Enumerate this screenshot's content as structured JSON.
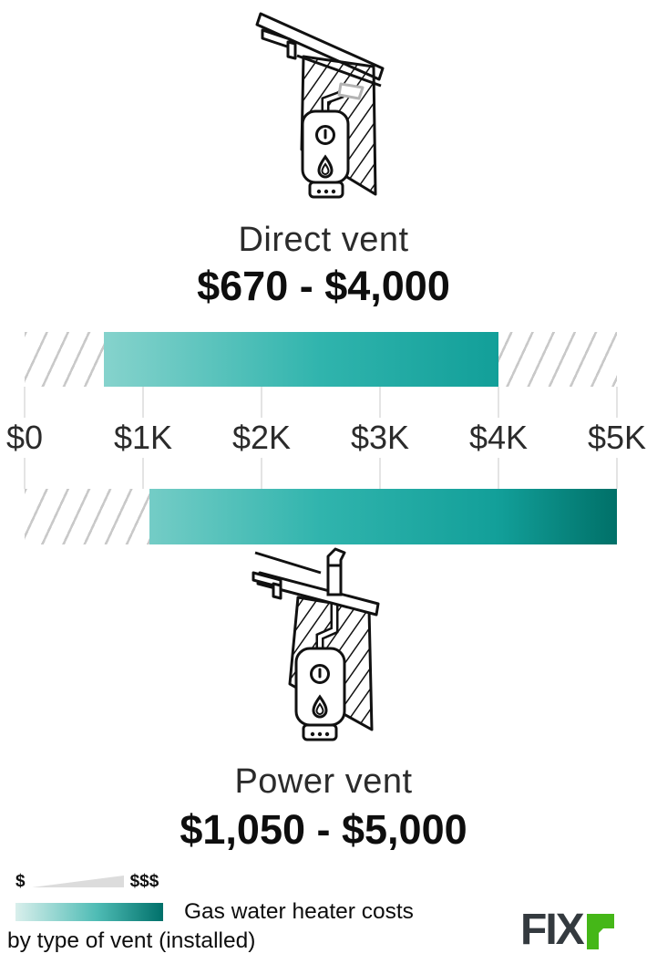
{
  "chart_data": {
    "type": "bar",
    "subtype": "horizontal-range-bars",
    "title": "Gas water heater costs by type of vent (installed)",
    "axis": {
      "min": 0,
      "max": 5000,
      "tick_values": [
        0,
        1000,
        2000,
        3000,
        4000,
        5000
      ],
      "tick_labels": [
        "$0",
        "$1K",
        "$2K",
        "$3K",
        "$4K",
        "$5K"
      ],
      "grid": true
    },
    "series": [
      {
        "name": "Direct vent",
        "min": 670,
        "max": 4000,
        "range_label": "$670 - $4,000",
        "icon": "direct-vent-water-heater-icon"
      },
      {
        "name": "Power vent",
        "min": 1050,
        "max": 5000,
        "range_label": "$1,050 - $5,000",
        "icon": "power-vent-water-heater-icon"
      }
    ],
    "legend": {
      "low_label": "$",
      "high_label": "$$$"
    },
    "colors": {
      "bar_gradient_stops": [
        [
          "0%",
          "#a5ded8"
        ],
        [
          "50%",
          "#30b4ad"
        ],
        [
          "80%",
          "#129f99"
        ],
        [
          "100%",
          "#007068"
        ]
      ],
      "legend_gradient_stops": [
        [
          "0%",
          "#d9efec"
        ],
        [
          "55%",
          "#4fbcb5"
        ],
        [
          "100%",
          "#00706a"
        ]
      ]
    }
  },
  "branding": {
    "logo_dark_text": "FIX",
    "logo_green_letter": "r",
    "logo_green": "#45b718",
    "logo_dark": "#343a3f"
  }
}
